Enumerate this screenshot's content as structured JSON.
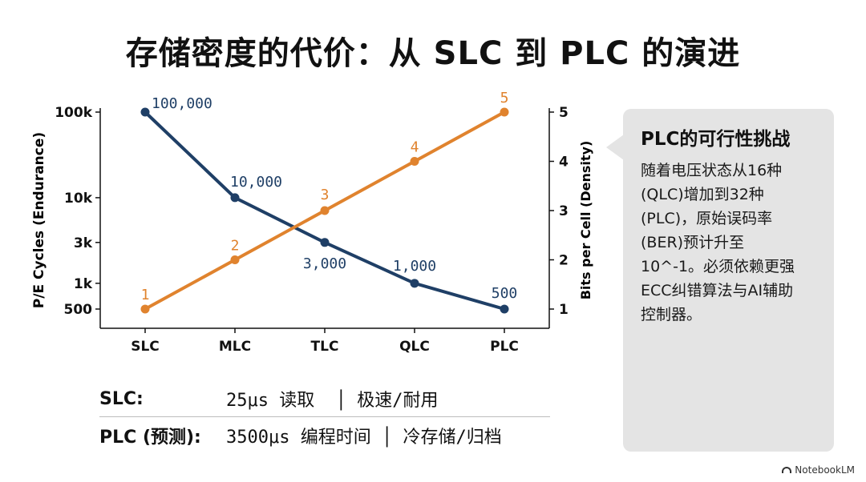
{
  "title": "存储密度的代价：从 SLC 到 PLC 的演进",
  "chart_data": {
    "type": "line",
    "categories": [
      "SLC",
      "MLC",
      "TLC",
      "QLC",
      "PLC"
    ],
    "y_left": {
      "label": "P/E Cycles (Endurance)",
      "scale": "log",
      "ticks": [
        500,
        1000,
        3000,
        10000,
        100000
      ],
      "tick_labels": [
        "500",
        "1k",
        "3k",
        "10k",
        "100k"
      ]
    },
    "y_right": {
      "label": "Bits per Cell (Density)",
      "ylim": [
        1,
        5
      ],
      "ticks": [
        1,
        2,
        3,
        4,
        5
      ],
      "tick_labels": [
        "1",
        "2",
        "3",
        "4",
        "5"
      ]
    },
    "series": [
      {
        "axis": "left",
        "color": "#1f3f66",
        "values": [
          100000,
          10000,
          3000,
          1000,
          500
        ],
        "labels": [
          "100,000",
          "10,000",
          "3,000",
          "1,000",
          "500"
        ]
      },
      {
        "axis": "right",
        "color": "#e0832e",
        "values": [
          1,
          2,
          3,
          4,
          5
        ],
        "labels": [
          "1",
          "2",
          "3",
          "4",
          "5"
        ]
      }
    ],
    "grid": false
  },
  "info_rows": [
    {
      "label": "SLC:",
      "value": "25μs 读取  │ 极速/耐用"
    },
    {
      "label": "PLC (预测):",
      "value": "3500μs 编程时间 │ 冷存储/归档"
    }
  ],
  "callout": {
    "title": "PLC的可行性挑战",
    "body": "随着电压状态从16种\n(QLC)增加到32种\n(PLC)，原始误码率\n(BER)预计升至\n10^-1。必须依赖更强\nECC纠错算法与AI辅助\n控制器。"
  },
  "brand": "NotebookLM",
  "icons": {
    "brand": "notebooklm-logo-icon"
  }
}
